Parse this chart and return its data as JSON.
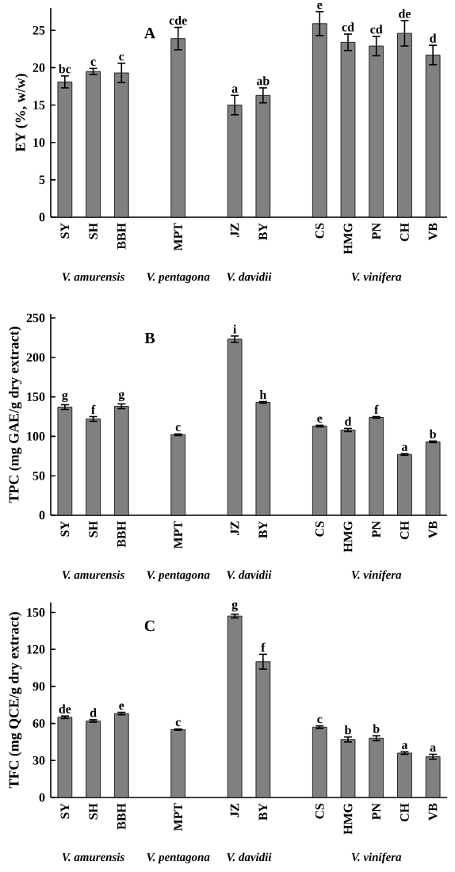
{
  "chart_data": [
    {
      "type": "bar",
      "title": "A",
      "ylabel": "EY (%, w/w)",
      "color": "#808080",
      "categories": [
        "SY",
        "SH",
        "BBH",
        null,
        "MPT",
        null,
        "JZ",
        "BY",
        null,
        "CS",
        "HMG",
        "PN",
        "CH",
        "VB"
      ],
      "values": [
        18.1,
        19.5,
        19.3,
        null,
        23.9,
        null,
        15.0,
        16.3,
        null,
        25.9,
        23.4,
        22.9,
        24.6,
        21.7
      ],
      "errors": [
        0.8,
        0.4,
        1.3,
        null,
        1.5,
        null,
        1.3,
        1.0,
        null,
        1.6,
        1.1,
        1.3,
        1.7,
        1.3
      ],
      "value_labels": [
        "bc",
        "c",
        "c",
        null,
        "cde",
        null,
        "a",
        "ab",
        null,
        "e",
        "cd",
        "cd",
        "de",
        "d"
      ],
      "ylim": [
        0,
        28
      ],
      "yticks": [
        0,
        5,
        10,
        15,
        20,
        25
      ],
      "annotations": [
        "V. amurensis",
        "V. pentagona",
        "V. davidii",
        "V. vinifera"
      ]
    },
    {
      "type": "bar",
      "title": "B",
      "ylabel": "TPC (mg GAE/g dry extract)",
      "color": "#808080",
      "categories": [
        "SY",
        "SH",
        "BBH",
        null,
        "MPT",
        null,
        "JZ",
        "BY",
        null,
        "CS",
        "HMG",
        "PN",
        "CH",
        "VB"
      ],
      "values": [
        137,
        122,
        138,
        null,
        102,
        null,
        223,
        143,
        null,
        113,
        108,
        124,
        77,
        93
      ],
      "errors": [
        3,
        3,
        3,
        null,
        1,
        null,
        4,
        1,
        null,
        1,
        2,
        1,
        1,
        1
      ],
      "value_labels": [
        "g",
        "f",
        "g",
        null,
        "c",
        null,
        "i",
        "h",
        null,
        "e",
        "d",
        "f",
        "a",
        "b"
      ],
      "ylim": [
        0,
        255
      ],
      "yticks": [
        0,
        50,
        100,
        150,
        200,
        250
      ],
      "annotations": [
        "V. amurensis",
        "V. pentagona",
        "V. davidii",
        "V. vinifera"
      ]
    },
    {
      "type": "bar",
      "title": "C",
      "ylabel": "TFC (mg QCE/g dry extract)",
      "color": "#808080",
      "categories": [
        "SY",
        "SH",
        "BBH",
        null,
        "MPT",
        null,
        "JZ",
        "BY",
        null,
        "CS",
        "HMG",
        "PN",
        "CH",
        "VB"
      ],
      "values": [
        65,
        62,
        68,
        null,
        55,
        null,
        147,
        110,
        null,
        57,
        47,
        48,
        36,
        33
      ],
      "errors": [
        1,
        1,
        1,
        null,
        0.5,
        null,
        1.5,
        6,
        null,
        1,
        2,
        2,
        1,
        2
      ],
      "value_labels": [
        "de",
        "d",
        "e",
        null,
        "c",
        null,
        "g",
        "f",
        null,
        "c",
        "b",
        "b",
        "a",
        "a"
      ],
      "ylim": [
        0,
        158
      ],
      "yticks": [
        0,
        30,
        60,
        90,
        120,
        150
      ],
      "annotations": [
        "V. amurensis",
        "V. pentagona",
        "V. davidii",
        "V. vinifera"
      ]
    }
  ]
}
